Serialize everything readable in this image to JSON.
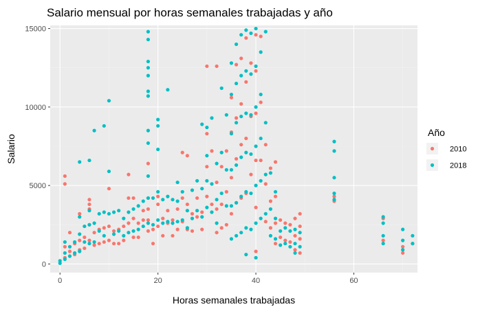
{
  "chart_data": {
    "type": "scatter",
    "title": "Salario mensual por horas semanales trabajadas y año",
    "xlabel": "Horas semanales trabajadas",
    "ylabel": "Salario",
    "xlim": [
      -2,
      73
    ],
    "ylim": [
      -550,
      15200
    ],
    "x_ticks": [
      0,
      20,
      40,
      60
    ],
    "y_ticks": [
      0,
      5000,
      10000,
      15000
    ],
    "grid": true,
    "legend": {
      "title": "Año",
      "position": "right"
    },
    "series": [
      {
        "name": "2010",
        "color": "#F8766D",
        "points": [
          [
            1,
            5600
          ],
          [
            1,
            5100
          ],
          [
            1,
            1100
          ],
          [
            1,
            400
          ],
          [
            2,
            2000
          ],
          [
            2,
            800
          ],
          [
            3,
            1300
          ],
          [
            3,
            600
          ],
          [
            4,
            1500
          ],
          [
            4,
            900
          ],
          [
            4,
            3200
          ],
          [
            5,
            1700
          ],
          [
            5,
            1000
          ],
          [
            6,
            4100
          ],
          [
            6,
            3800
          ],
          [
            6,
            3500
          ],
          [
            6,
            2500
          ],
          [
            6,
            1500
          ],
          [
            7,
            2000
          ],
          [
            7,
            1200
          ],
          [
            8,
            2200
          ],
          [
            8,
            1300
          ],
          [
            9,
            2300
          ],
          [
            9,
            1400
          ],
          [
            10,
            4800
          ],
          [
            10,
            2400
          ],
          [
            10,
            1500
          ],
          [
            11,
            2100
          ],
          [
            11,
            1300
          ],
          [
            12,
            2200
          ],
          [
            12,
            1300
          ],
          [
            13,
            2400
          ],
          [
            13,
            1500
          ],
          [
            14,
            5700
          ],
          [
            14,
            4200
          ],
          [
            14,
            2600
          ],
          [
            15,
            4200
          ],
          [
            15,
            2900
          ],
          [
            15,
            1700
          ],
          [
            16,
            2600
          ],
          [
            16,
            1700
          ],
          [
            17,
            3400
          ],
          [
            17,
            2800
          ],
          [
            18,
            6400
          ],
          [
            18,
            4200
          ],
          [
            18,
            3500
          ],
          [
            18,
            2800
          ],
          [
            18,
            2100
          ],
          [
            19,
            2200
          ],
          [
            19,
            1300
          ],
          [
            20,
            4300
          ],
          [
            20,
            3800
          ],
          [
            20,
            2400
          ],
          [
            21,
            2900
          ],
          [
            21,
            1800
          ],
          [
            22,
            3400
          ],
          [
            22,
            2600
          ],
          [
            23,
            2800
          ],
          [
            23,
            1800
          ],
          [
            24,
            3500
          ],
          [
            24,
            2200
          ],
          [
            25,
            7100
          ],
          [
            25,
            4200
          ],
          [
            25,
            2700
          ],
          [
            26,
            6900
          ],
          [
            26,
            3800
          ],
          [
            26,
            2200
          ],
          [
            27,
            3200
          ],
          [
            27,
            2100
          ],
          [
            28,
            4200
          ],
          [
            28,
            3000
          ],
          [
            29,
            3300
          ],
          [
            29,
            2200
          ],
          [
            30,
            12600
          ],
          [
            30,
            8300
          ],
          [
            30,
            6200
          ],
          [
            30,
            4300
          ],
          [
            31,
            7200
          ],
          [
            31,
            3800
          ],
          [
            32,
            12600
          ],
          [
            32,
            5200
          ],
          [
            32,
            3500
          ],
          [
            32,
            2000
          ],
          [
            33,
            6200
          ],
          [
            33,
            3800
          ],
          [
            33,
            2300
          ],
          [
            34,
            7200
          ],
          [
            34,
            4600
          ],
          [
            34,
            2500
          ],
          [
            35,
            10600
          ],
          [
            35,
            8400
          ],
          [
            35,
            5500
          ],
          [
            35,
            3200
          ],
          [
            36,
            12700
          ],
          [
            36,
            9300
          ],
          [
            36,
            6700
          ],
          [
            36,
            3900
          ],
          [
            37,
            13100
          ],
          [
            37,
            10200
          ],
          [
            37,
            7600
          ],
          [
            37,
            4200
          ],
          [
            38,
            14400
          ],
          [
            38,
            11600
          ],
          [
            38,
            8000
          ],
          [
            38,
            4500
          ],
          [
            39,
            12800
          ],
          [
            39,
            9400
          ],
          [
            39,
            5700
          ],
          [
            40,
            14600
          ],
          [
            40,
            12300
          ],
          [
            40,
            9600
          ],
          [
            40,
            6600
          ],
          [
            40,
            3600
          ],
          [
            40,
            800
          ],
          [
            41,
            14500
          ],
          [
            41,
            10300
          ],
          [
            41,
            6600
          ],
          [
            42,
            7600
          ],
          [
            42,
            5100
          ],
          [
            42,
            2700
          ],
          [
            43,
            6100
          ],
          [
            43,
            4000
          ],
          [
            43,
            2300
          ],
          [
            44,
            6500
          ],
          [
            44,
            4300
          ],
          [
            44,
            2600
          ],
          [
            44,
            1300
          ],
          [
            45,
            2800
          ],
          [
            45,
            1700
          ],
          [
            46,
            2600
          ],
          [
            46,
            1500
          ],
          [
            47,
            2500
          ],
          [
            47,
            1400
          ],
          [
            48,
            2900
          ],
          [
            48,
            1800
          ],
          [
            48,
            900
          ],
          [
            49,
            3200
          ],
          [
            49,
            2400
          ],
          [
            49,
            1600
          ],
          [
            49,
            700
          ],
          [
            56,
            4300
          ],
          [
            56,
            4000
          ],
          [
            66,
            2900
          ],
          [
            66,
            1500
          ],
          [
            70,
            1100
          ],
          [
            70,
            700
          ],
          [
            72,
            1300
          ]
        ]
      },
      {
        "name": "2018",
        "color": "#00BFC4",
        "points": [
          [
            0,
            200
          ],
          [
            0,
            50
          ],
          [
            1,
            1400
          ],
          [
            1,
            700
          ],
          [
            1,
            300
          ],
          [
            2,
            1100
          ],
          [
            2,
            500
          ],
          [
            3,
            1400
          ],
          [
            3,
            700
          ],
          [
            4,
            6500
          ],
          [
            4,
            3000
          ],
          [
            4,
            1900
          ],
          [
            4,
            800
          ],
          [
            5,
            2400
          ],
          [
            5,
            1400
          ],
          [
            6,
            6600
          ],
          [
            6,
            3400
          ],
          [
            6,
            2500
          ],
          [
            6,
            1300
          ],
          [
            7,
            8500
          ],
          [
            7,
            2600
          ],
          [
            7,
            1400
          ],
          [
            8,
            3200
          ],
          [
            8,
            2100
          ],
          [
            9,
            8800
          ],
          [
            9,
            3300
          ],
          [
            9,
            1800
          ],
          [
            10,
            10400
          ],
          [
            10,
            5900
          ],
          [
            10,
            3200
          ],
          [
            11,
            3300
          ],
          [
            11,
            1900
          ],
          [
            12,
            3400
          ],
          [
            12,
            2100
          ],
          [
            13,
            2900
          ],
          [
            13,
            1800
          ],
          [
            14,
            3300
          ],
          [
            14,
            2000
          ],
          [
            15,
            3500
          ],
          [
            15,
            2100
          ],
          [
            16,
            3700
          ],
          [
            16,
            2200
          ],
          [
            17,
            4000
          ],
          [
            17,
            2400
          ],
          [
            18,
            14800
          ],
          [
            18,
            14300
          ],
          [
            18,
            12900
          ],
          [
            18,
            12500
          ],
          [
            18,
            12000
          ],
          [
            18,
            11000
          ],
          [
            18,
            10700
          ],
          [
            18,
            8500
          ],
          [
            18,
            7700
          ],
          [
            18,
            5600
          ],
          [
            18,
            4200
          ],
          [
            18,
            2600
          ],
          [
            19,
            4200
          ],
          [
            19,
            2500
          ],
          [
            20,
            9200
          ],
          [
            20,
            8800
          ],
          [
            20,
            7300
          ],
          [
            20,
            4600
          ],
          [
            20,
            2800
          ],
          [
            21,
            4100
          ],
          [
            21,
            2600
          ],
          [
            22,
            11100
          ],
          [
            22,
            4300
          ],
          [
            22,
            2700
          ],
          [
            23,
            4100
          ],
          [
            23,
            2600
          ],
          [
            24,
            5200
          ],
          [
            24,
            4000
          ],
          [
            24,
            2700
          ],
          [
            25,
            4600
          ],
          [
            25,
            2800
          ],
          [
            26,
            3400
          ],
          [
            26,
            2300
          ],
          [
            27,
            4700
          ],
          [
            27,
            2900
          ],
          [
            28,
            5300
          ],
          [
            28,
            3400
          ],
          [
            29,
            8900
          ],
          [
            29,
            4800
          ],
          [
            29,
            3000
          ],
          [
            30,
            8700
          ],
          [
            30,
            6900
          ],
          [
            30,
            5300
          ],
          [
            30,
            3600
          ],
          [
            31,
            9300
          ],
          [
            31,
            5100
          ],
          [
            31,
            3300
          ],
          [
            32,
            6400
          ],
          [
            32,
            4100
          ],
          [
            32,
            2600
          ],
          [
            33,
            11200
          ],
          [
            33,
            7100
          ],
          [
            33,
            4500
          ],
          [
            34,
            9500
          ],
          [
            34,
            6000
          ],
          [
            34,
            3700
          ],
          [
            35,
            12800
          ],
          [
            35,
            10800
          ],
          [
            35,
            8300
          ],
          [
            35,
            6000
          ],
          [
            35,
            3700
          ],
          [
            35,
            1600
          ],
          [
            36,
            14000
          ],
          [
            36,
            11500
          ],
          [
            36,
            9000
          ],
          [
            36,
            6300
          ],
          [
            36,
            3900
          ],
          [
            36,
            1800
          ],
          [
            37,
            14600
          ],
          [
            37,
            12000
          ],
          [
            37,
            9400
          ],
          [
            37,
            6800
          ],
          [
            37,
            4300
          ],
          [
            37,
            2000
          ],
          [
            38,
            14900
          ],
          [
            38,
            12300
          ],
          [
            38,
            9600
          ],
          [
            38,
            7100
          ],
          [
            38,
            4600
          ],
          [
            38,
            2300
          ],
          [
            38,
            600
          ],
          [
            39,
            14700
          ],
          [
            39,
            12100
          ],
          [
            39,
            9500
          ],
          [
            39,
            7000
          ],
          [
            39,
            4500
          ],
          [
            39,
            2200
          ],
          [
            40,
            15000
          ],
          [
            40,
            12600
          ],
          [
            40,
            10000
          ],
          [
            40,
            7500
          ],
          [
            40,
            5000
          ],
          [
            40,
            2600
          ],
          [
            40,
            400
          ],
          [
            41,
            13500
          ],
          [
            41,
            10800
          ],
          [
            41,
            8000
          ],
          [
            41,
            5300
          ],
          [
            41,
            2900
          ],
          [
            42,
            14800
          ],
          [
            42,
            9000
          ],
          [
            42,
            5700
          ],
          [
            42,
            3200
          ],
          [
            43,
            5800
          ],
          [
            43,
            3500
          ],
          [
            43,
            1800
          ],
          [
            44,
            4600
          ],
          [
            44,
            2900
          ],
          [
            44,
            1600
          ],
          [
            45,
            2100
          ],
          [
            45,
            1200
          ],
          [
            46,
            2300
          ],
          [
            46,
            1300
          ],
          [
            47,
            2100
          ],
          [
            47,
            1100
          ],
          [
            48,
            2200
          ],
          [
            48,
            1300
          ],
          [
            48,
            700
          ],
          [
            49,
            2000
          ],
          [
            49,
            1100
          ],
          [
            56,
            7800
          ],
          [
            56,
            7200
          ],
          [
            56,
            5500
          ],
          [
            56,
            4500
          ],
          [
            56,
            4100
          ],
          [
            66,
            3000
          ],
          [
            66,
            2600
          ],
          [
            66,
            1800
          ],
          [
            66,
            1300
          ],
          [
            70,
            2200
          ],
          [
            70,
            1500
          ],
          [
            70,
            900
          ],
          [
            72,
            1800
          ],
          [
            72,
            1300
          ]
        ]
      }
    ]
  }
}
